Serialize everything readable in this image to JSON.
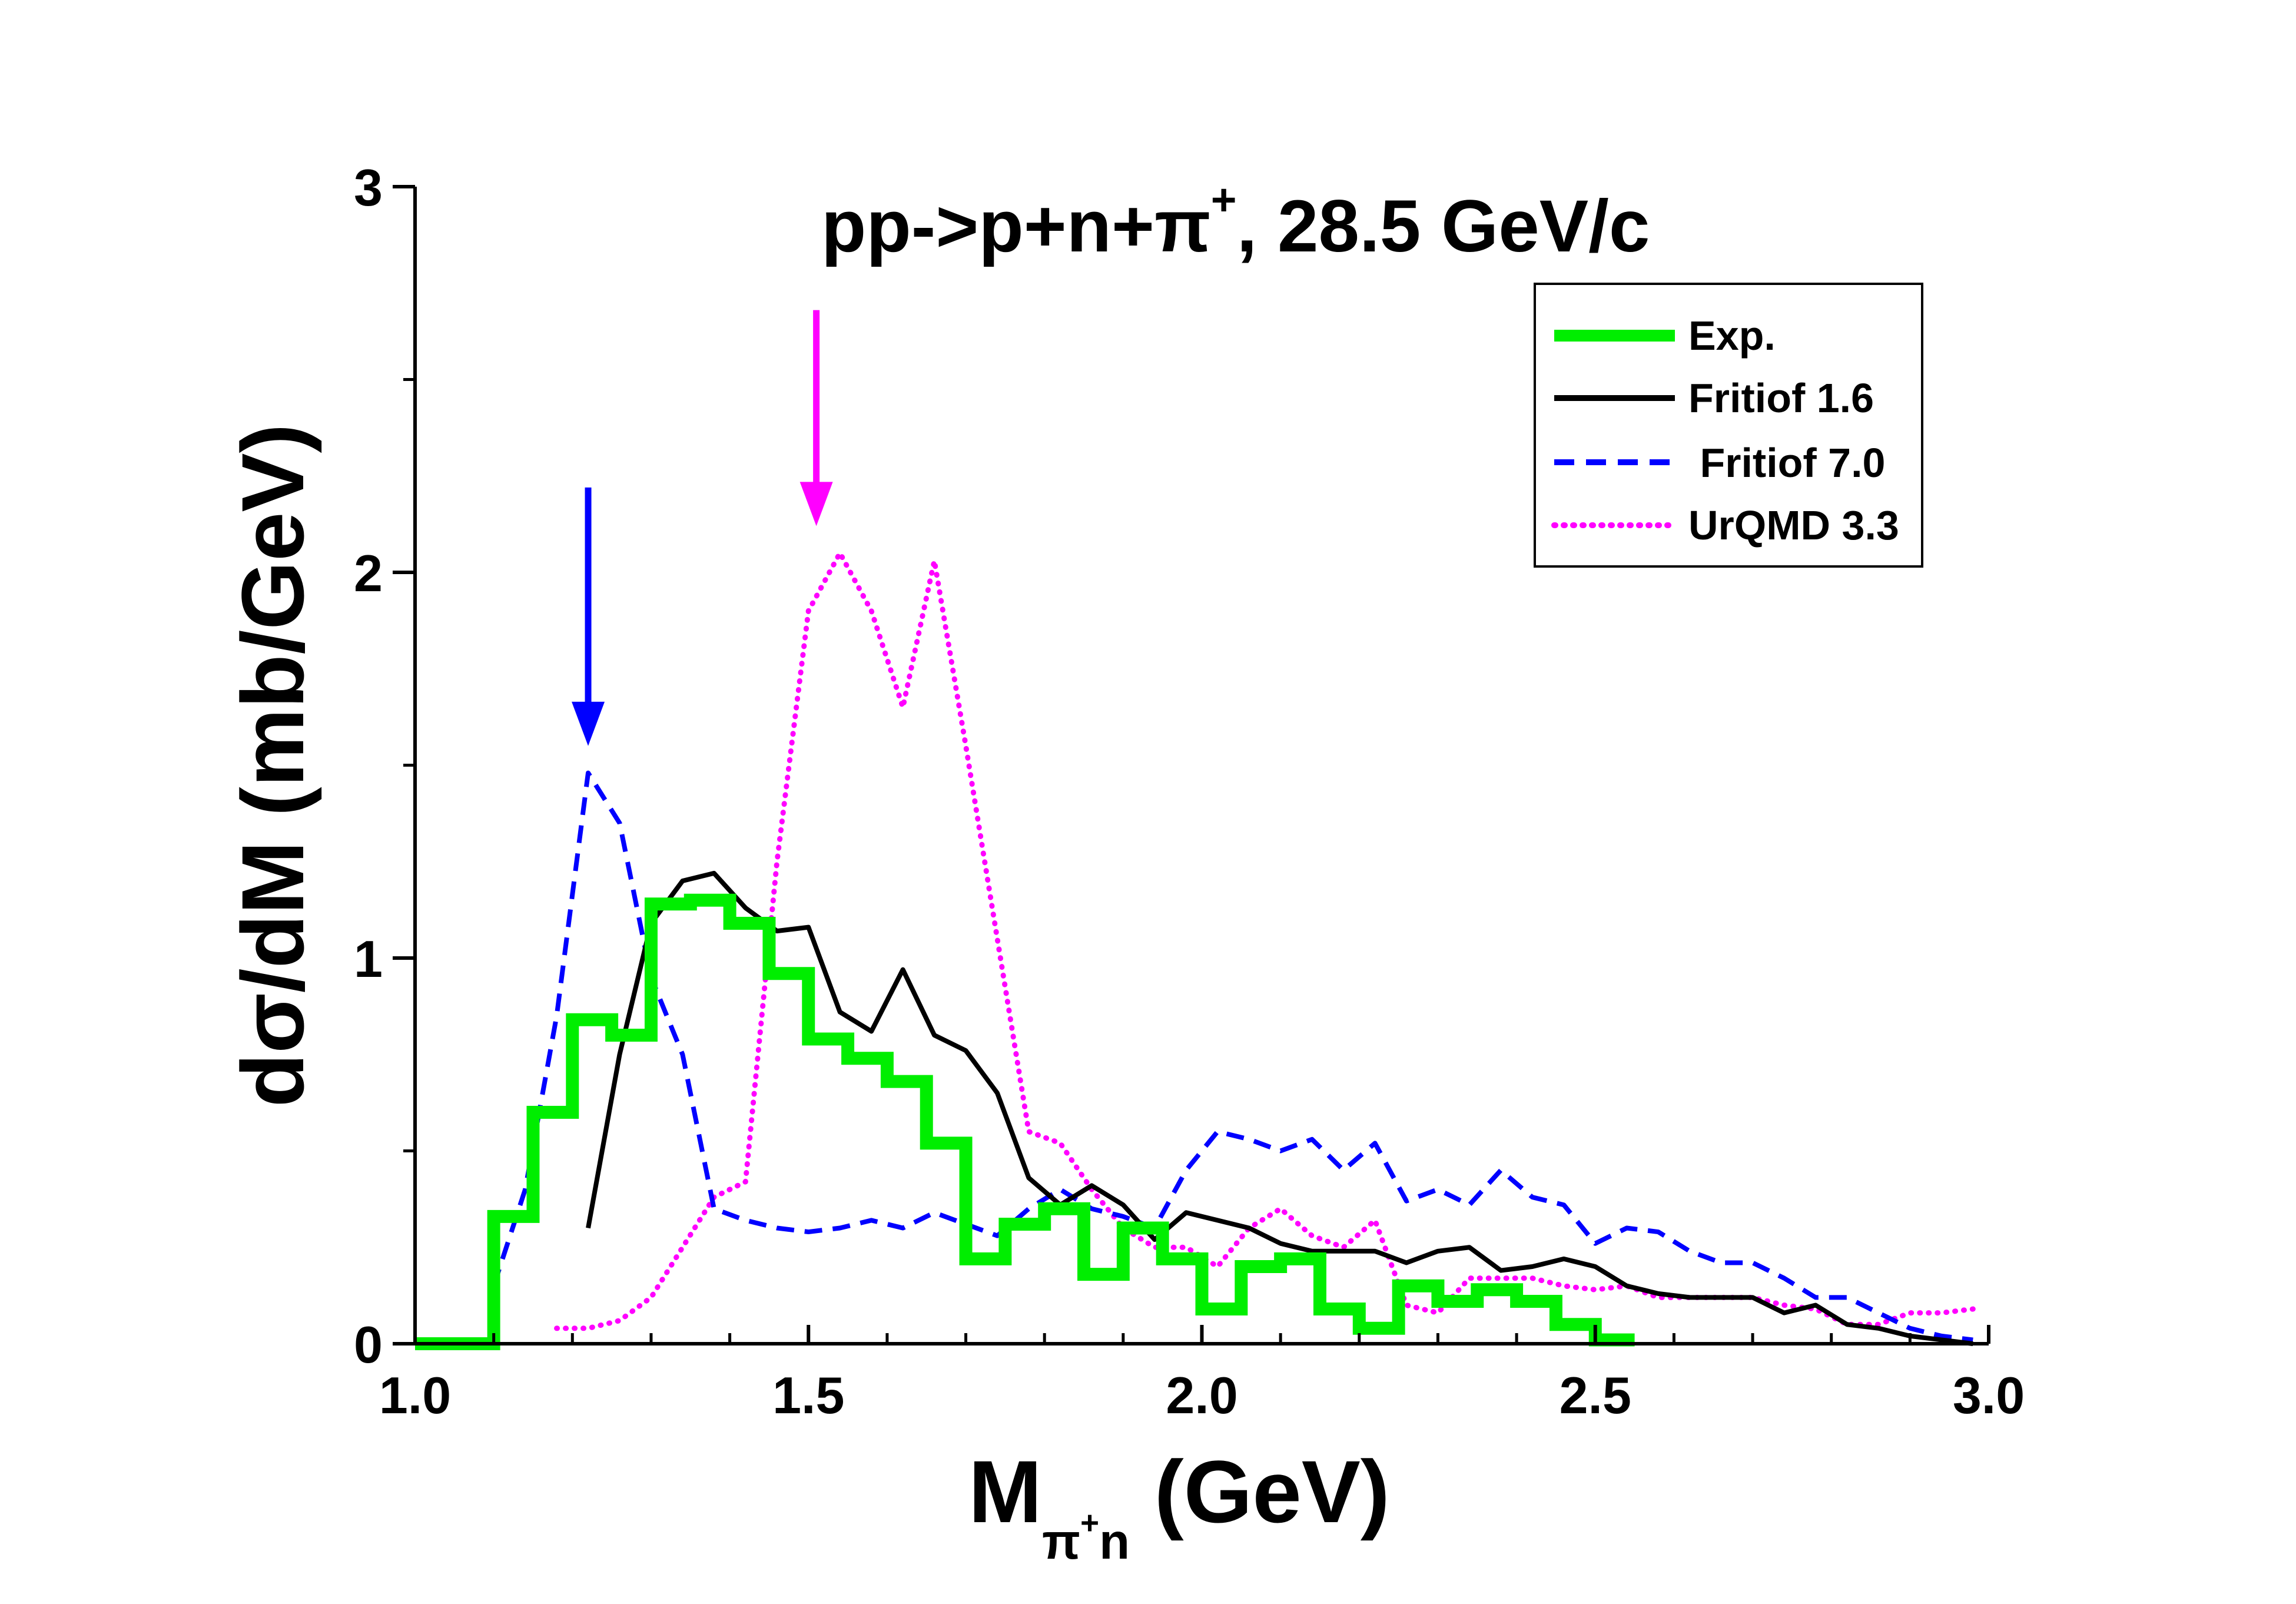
{
  "chart_data": {
    "type": "line",
    "title": {
      "main": "pp->p+n+",
      "pi": "π",
      "pi_charge": "+",
      "rest": ", 28.5 GeV/c"
    },
    "xlabel": {
      "main": "M",
      "sub_pi": "π",
      "sub_charge": "+",
      "sub_n": "n",
      "unit": " (GeV)"
    },
    "ylabel": "dσ/dM (mb/GeV)",
    "xlim": [
      1.0,
      3.0
    ],
    "ylim": [
      0,
      3
    ],
    "x_ticks": [
      1.0,
      1.5,
      2.0,
      2.5,
      3.0
    ],
    "x_tick_labels": [
      "1.0",
      "1.5",
      "2.0",
      "2.5",
      "3.0"
    ],
    "y_ticks": [
      0,
      1,
      2,
      3
    ],
    "y_tick_labels": [
      "0",
      "1",
      "2",
      "3"
    ],
    "legend_position": "top-right",
    "series": [
      {
        "name": "Exp.",
        "style": "step",
        "color": "#00ee00",
        "bin_edges": [
          1.0,
          1.1,
          1.15,
          1.2,
          1.25,
          1.3,
          1.35,
          1.4,
          1.45,
          1.5,
          1.55,
          1.6,
          1.65,
          1.7,
          1.75,
          1.8,
          1.85,
          1.9,
          1.95,
          2.0,
          2.05,
          2.1,
          2.15,
          2.2,
          2.25,
          2.3,
          2.35,
          2.4,
          2.45,
          2.5,
          2.55
        ],
        "values": [
          0,
          0.33,
          0.6,
          0.84,
          0.8,
          1.14,
          1.15,
          1.09,
          0.96,
          0.79,
          0.74,
          0.68,
          0.52,
          0.22,
          0.31,
          0.35,
          0.18,
          0.3,
          0.22,
          0.09,
          0.2,
          0.22,
          0.09,
          0.04,
          0.15,
          0.11,
          0.14,
          0.11,
          0.05,
          0.01
        ]
      },
      {
        "name": "Fritiof 1.6",
        "style": "solid",
        "color": "#000000",
        "x": [
          1.22,
          1.26,
          1.3,
          1.34,
          1.38,
          1.42,
          1.46,
          1.5,
          1.54,
          1.58,
          1.62,
          1.66,
          1.7,
          1.74,
          1.78,
          1.82,
          1.86,
          1.9,
          1.94,
          1.98,
          2.02,
          2.06,
          2.1,
          2.14,
          2.18,
          2.22,
          2.26,
          2.3,
          2.34,
          2.38,
          2.42,
          2.46,
          2.5,
          2.54,
          2.58,
          2.62,
          2.66,
          2.7,
          2.74,
          2.78,
          2.82,
          2.86,
          2.9,
          2.94,
          2.98
        ],
        "y": [
          0.3,
          0.75,
          1.09,
          1.2,
          1.22,
          1.13,
          1.07,
          1.08,
          0.86,
          0.81,
          0.97,
          0.8,
          0.76,
          0.65,
          0.43,
          0.36,
          0.41,
          0.36,
          0.27,
          0.34,
          0.32,
          0.3,
          0.26,
          0.24,
          0.24,
          0.24,
          0.21,
          0.24,
          0.25,
          0.19,
          0.2,
          0.22,
          0.2,
          0.15,
          0.13,
          0.12,
          0.12,
          0.12,
          0.08,
          0.1,
          0.05,
          0.04,
          0.02,
          0.01,
          0.0
        ]
      },
      {
        "name": " Fritiof 7.0",
        "style": "dashed",
        "color": "#0000ff",
        "x": [
          1.1,
          1.14,
          1.18,
          1.22,
          1.26,
          1.3,
          1.34,
          1.38,
          1.42,
          1.46,
          1.5,
          1.54,
          1.58,
          1.62,
          1.66,
          1.7,
          1.74,
          1.78,
          1.82,
          1.86,
          1.9,
          1.94,
          1.98,
          2.02,
          2.06,
          2.1,
          2.14,
          2.18,
          2.22,
          2.26,
          2.3,
          2.34,
          2.38,
          2.42,
          2.46,
          2.5,
          2.54,
          2.58,
          2.62,
          2.66,
          2.7,
          2.74,
          2.78,
          2.82,
          2.86,
          2.9,
          2.94,
          2.98
        ],
        "y": [
          0.15,
          0.4,
          0.85,
          1.48,
          1.35,
          0.95,
          0.75,
          0.35,
          0.32,
          0.3,
          0.29,
          0.3,
          0.32,
          0.3,
          0.34,
          0.31,
          0.28,
          0.35,
          0.4,
          0.35,
          0.33,
          0.3,
          0.45,
          0.55,
          0.53,
          0.5,
          0.53,
          0.45,
          0.52,
          0.37,
          0.4,
          0.36,
          0.45,
          0.38,
          0.36,
          0.26,
          0.3,
          0.29,
          0.24,
          0.21,
          0.21,
          0.17,
          0.12,
          0.12,
          0.08,
          0.04,
          0.02,
          0.01
        ]
      },
      {
        "name": "UrQMD 3.3",
        "style": "dotted",
        "color": "#ff00ff",
        "x": [
          1.18,
          1.22,
          1.26,
          1.3,
          1.34,
          1.38,
          1.42,
          1.46,
          1.5,
          1.54,
          1.58,
          1.62,
          1.66,
          1.7,
          1.74,
          1.78,
          1.82,
          1.86,
          1.9,
          1.94,
          1.98,
          2.02,
          2.06,
          2.1,
          2.14,
          2.18,
          2.22,
          2.26,
          2.3,
          2.34,
          2.38,
          2.42,
          2.46,
          2.5,
          2.54,
          2.58,
          2.62,
          2.66,
          2.7,
          2.74,
          2.78,
          2.82,
          2.86,
          2.9,
          2.94,
          2.98
        ],
        "y": [
          0.04,
          0.04,
          0.06,
          0.12,
          0.25,
          0.38,
          0.42,
          1.25,
          1.9,
          2.05,
          1.9,
          1.65,
          2.03,
          1.55,
          1.05,
          0.55,
          0.52,
          0.4,
          0.3,
          0.25,
          0.25,
          0.2,
          0.3,
          0.35,
          0.28,
          0.25,
          0.32,
          0.1,
          0.08,
          0.17,
          0.17,
          0.17,
          0.15,
          0.14,
          0.15,
          0.12,
          0.12,
          0.12,
          0.12,
          0.1,
          0.09,
          0.05,
          0.05,
          0.08,
          0.08,
          0.09
        ]
      }
    ],
    "annotations": [
      {
        "type": "arrow",
        "color": "#0000ff",
        "x": 1.22,
        "y_from": 2.22,
        "y_to": 1.55
      },
      {
        "type": "arrow",
        "color": "#ff00ff",
        "x": 1.51,
        "y_from": 2.68,
        "y_to": 2.12
      }
    ]
  }
}
